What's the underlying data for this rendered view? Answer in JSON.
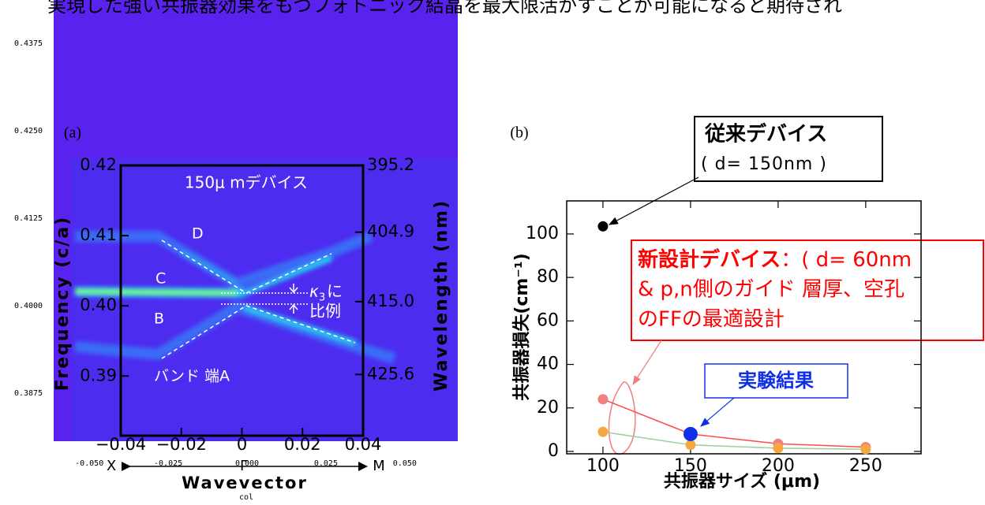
{
  "header_text": "実現した強い共振器効果をもつフォトニック結晶を最大限活かすことが可能になると期待され",
  "chart_data": [
    {
      "type": "heatmap",
      "panel_label": "(a)",
      "title": "150μ mデバイス",
      "xlabel": "Wavevector",
      "ylabel": "Frequency (c/a)",
      "y2label": "Wavelength (nm)",
      "xlim": [
        -0.04,
        0.04
      ],
      "ylim": [
        0.3815,
        0.42
      ],
      "y2lim": [
        395.2,
        434.5
      ],
      "xticks": [
        {
          "value": -0.04,
          "label": "−0.04"
        },
        {
          "value": -0.02,
          "label": "−0.02"
        },
        0,
        0.02,
        0.04
      ],
      "yticks": [
        0.39,
        {
          "value": 0.4,
          "label": "0.40"
        },
        0.41,
        0.42
      ],
      "y2ticks": [
        395.2,
        404.9,
        {
          "value": 415,
          "label": "415.0"
        },
        425.6
      ],
      "symmetry_points": [
        "X",
        "Γ",
        "M"
      ],
      "annotations": [
        "D",
        "C",
        "B",
        "バンド 端A"
      ],
      "kappa_note": [
        "κ",
        "3",
        "に",
        "比例"
      ],
      "outer_axis": {
        "xlabel": "col",
        "xlim": [
          -0.0613,
          0.0668
        ],
        "ylim": [
          0.3806,
          0.4437
        ],
        "xticks": [
          {
            "value": -0.05,
            "label": "-0.050"
          },
          -0.025,
          {
            "value": 0,
            "label": "0.000"
          },
          0.025,
          {
            "value": 0.05,
            "label": "0.050"
          }
        ],
        "yticks": [
          0.3875,
          {
            "value": 0.4,
            "label": "0.4000"
          },
          0.4125,
          {
            "value": 0.425,
            "label": "0.4250"
          },
          0.4375
        ]
      }
    },
    {
      "type": "scatter",
      "panel_label": "(b)",
      "xlabel": "共振器サイズ (μm)",
      "ylabel": "共振器損失(cm⁻¹)",
      "xlim": [
        79.3,
        281.6
      ],
      "ylim": [
        -1.1,
        115.2
      ],
      "xticks": [
        100,
        150,
        200,
        250
      ],
      "yticks": [
        0,
        20,
        40,
        60,
        80,
        100
      ],
      "series": [
        {
          "name": "従来デバイス",
          "color": "#000000",
          "x": [
            100
          ],
          "values": [
            103.5
          ],
          "note": [
            "( d= 150nm )"
          ]
        },
        {
          "name": "新設計デバイス",
          "color": "#f08080",
          "line_color": "#ff4a4a",
          "x": [
            100,
            150,
            200,
            250
          ],
          "values": [
            24,
            8,
            3.5,
            2
          ],
          "note": [
            "：( d= 60nm",
            "& p,n側のガイド 層厚、空孔",
            "のFFの最適設計"
          ]
        },
        {
          "color": "#f5a840",
          "line_color": "#9ccc9c",
          "x": [
            100,
            150,
            200,
            250
          ],
          "values": [
            9,
            3,
            1.5,
            1
          ]
        },
        {
          "name": "実験結果",
          "color": "#1030e8",
          "x": [
            150
          ],
          "values": [
            8
          ]
        }
      ]
    }
  ]
}
